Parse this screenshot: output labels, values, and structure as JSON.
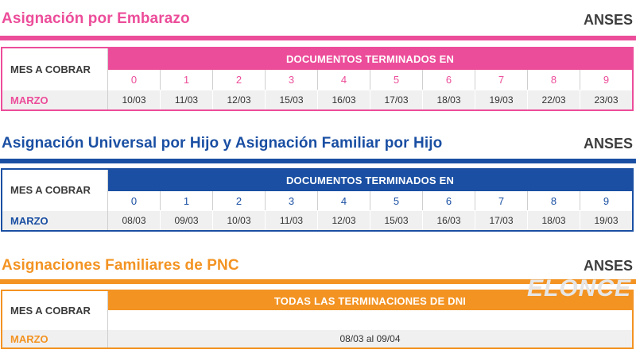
{
  "brand": "ANSES",
  "watermark": "ELONCE",
  "embarazo": {
    "title": "Asignación por Embarazo",
    "color": "#ec4d9a",
    "mes_label": "MES A COBRAR",
    "header": "DOCUMENTOS TERMINADOS EN",
    "month": "MARZO",
    "digits": [
      "0",
      "1",
      "2",
      "3",
      "4",
      "5",
      "6",
      "7",
      "8",
      "9"
    ],
    "dates": [
      "10/03",
      "11/03",
      "12/03",
      "15/03",
      "16/03",
      "17/03",
      "18/03",
      "19/03",
      "22/03",
      "23/03"
    ]
  },
  "auh": {
    "title": "Asignación Universal por Hijo y Asignación Familiar por Hijo",
    "color": "#1a4fa3",
    "mes_label": "MES A COBRAR",
    "header": "DOCUMENTOS TERMINADOS EN",
    "month": "MARZO",
    "digits": [
      "0",
      "1",
      "2",
      "3",
      "4",
      "5",
      "6",
      "7",
      "8",
      "9"
    ],
    "dates": [
      "08/03",
      "09/03",
      "10/03",
      "11/03",
      "12/03",
      "15/03",
      "16/03",
      "17/03",
      "18/03",
      "19/03"
    ]
  },
  "pnc": {
    "title": "Asignaciones Familiares de PNC",
    "color": "#f39322",
    "mes_label": "MES A COBRAR",
    "header": "TODAS LAS TERMINACIONES DE DNI",
    "month": "MARZO",
    "range": "08/03 al 09/04"
  }
}
